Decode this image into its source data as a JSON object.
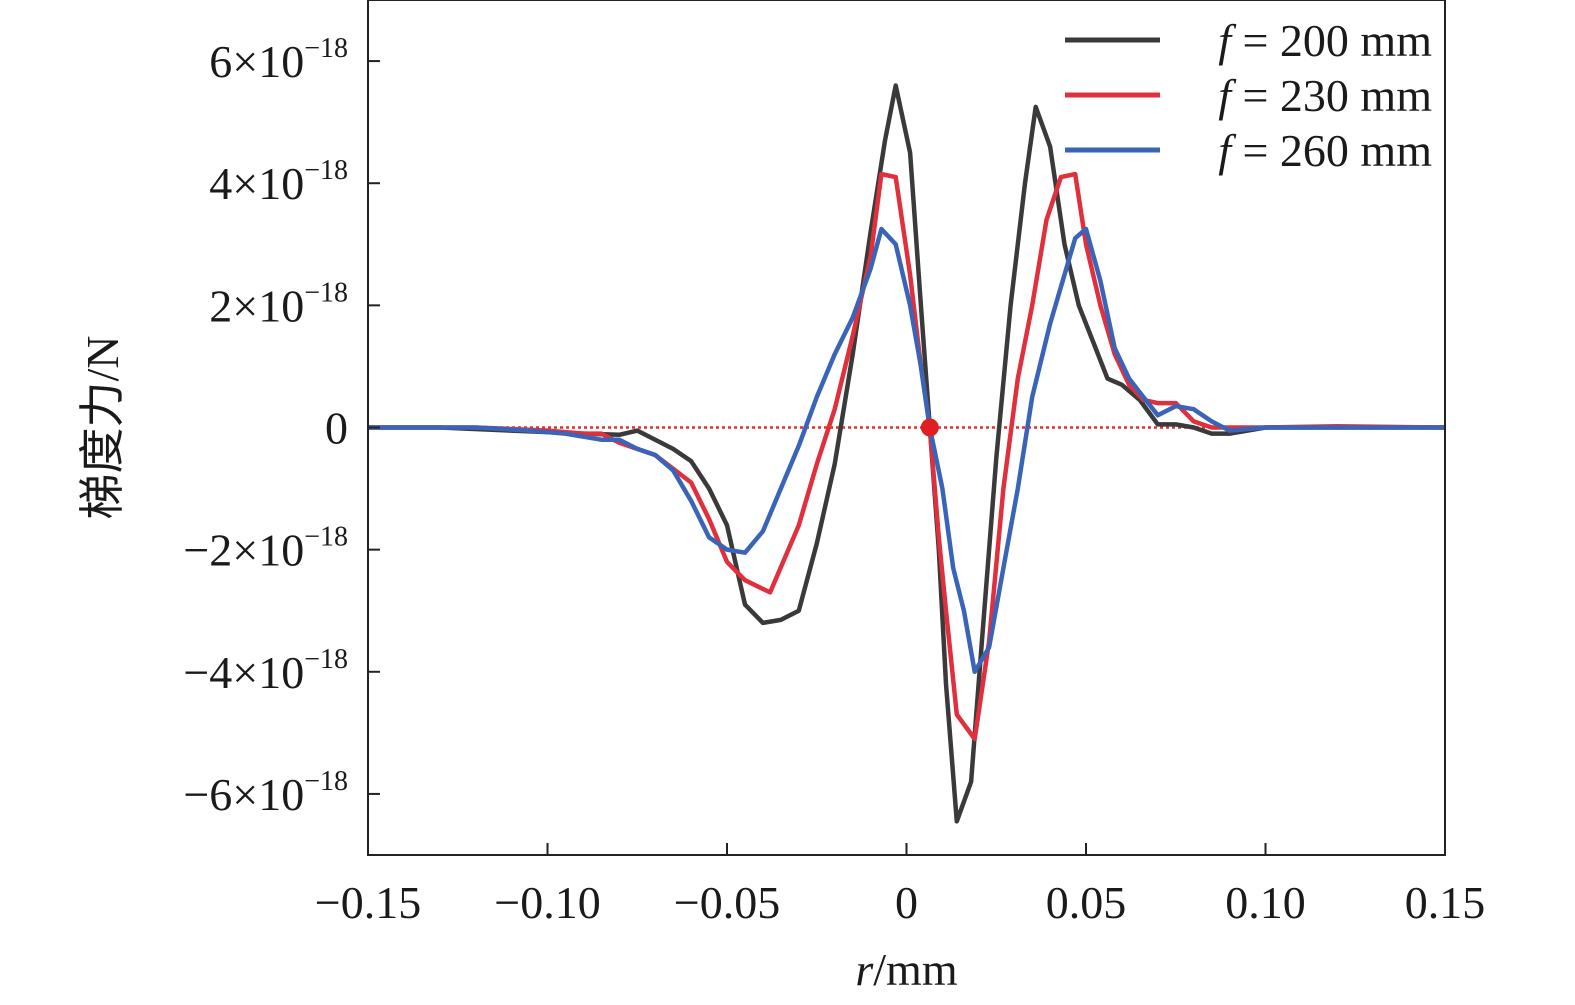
{
  "chart_data": {
    "type": "line",
    "xlabel": "r/mm",
    "xlabel_italic": "r",
    "xlabel_unit": "/mm",
    "ylabel": "梯度力/N",
    "xlim": [
      -0.15,
      0.15
    ],
    "ylim": [
      -7e-18,
      7e-18
    ],
    "x_ticks": [
      {
        "value": -0.15,
        "label": "−0.15"
      },
      {
        "value": -0.1,
        "label": "−0.10"
      },
      {
        "value": -0.05,
        "label": "−0.05"
      },
      {
        "value": 0,
        "label": "0"
      },
      {
        "value": 0.05,
        "label": "0.05"
      },
      {
        "value": 0.1,
        "label": "0.10"
      },
      {
        "value": 0.15,
        "label": "0.15"
      }
    ],
    "y_ticks": [
      {
        "value": 6e-18,
        "mant": "6×10",
        "exp": "−18"
      },
      {
        "value": 4e-18,
        "mant": "4×10",
        "exp": "−18"
      },
      {
        "value": 2e-18,
        "mant": "2×10",
        "exp": "−18"
      },
      {
        "value": 0,
        "mant": "0",
        "exp": ""
      },
      {
        "value": -2e-18,
        "mant": "−2×10",
        "exp": "−18"
      },
      {
        "value": -4e-18,
        "mant": "−4×10",
        "exp": "−18"
      },
      {
        "value": -6e-18,
        "mant": "−6×10",
        "exp": "−18"
      }
    ],
    "legend_position": "top-right",
    "zero_line": {
      "style": "dotted",
      "color": "#e03030"
    },
    "marker": {
      "x": 0.0065,
      "y": 0,
      "color": "#e02020"
    },
    "series": [
      {
        "name": "f = 200 mm",
        "name_italic": "f",
        "name_rest": " = 200 mm",
        "color": "#3a3a3a",
        "points": [
          [
            -0.15,
            0
          ],
          [
            -0.13,
            0
          ],
          [
            -0.11,
            -5e-20
          ],
          [
            -0.09,
            -1e-19
          ],
          [
            -0.08,
            -1.2e-19
          ],
          [
            -0.075,
            -5e-20
          ],
          [
            -0.07,
            -2e-19
          ],
          [
            -0.065,
            -3.5e-19
          ],
          [
            -0.06,
            -5.5e-19
          ],
          [
            -0.055,
            -1e-18
          ],
          [
            -0.05,
            -1.6e-18
          ],
          [
            -0.045,
            -2.9e-18
          ],
          [
            -0.04,
            -3.2e-18
          ],
          [
            -0.035,
            -3.15e-18
          ],
          [
            -0.03,
            -3e-18
          ],
          [
            -0.025,
            -1.9e-18
          ],
          [
            -0.02,
            -6e-19
          ],
          [
            -0.015,
            1.2e-18
          ],
          [
            -0.01,
            3.2e-18
          ],
          [
            -0.006,
            4.7e-18
          ],
          [
            -0.003,
            5.6e-18
          ],
          [
            0.001,
            4.5e-18
          ],
          [
            0.004,
            2e-18
          ],
          [
            0.0065,
            0
          ],
          [
            0.009,
            -2e-18
          ],
          [
            0.011,
            -4.2e-18
          ],
          [
            0.014,
            -6.45e-18
          ],
          [
            0.018,
            -5.8e-18
          ],
          [
            0.021,
            -3.5e-18
          ],
          [
            0.025,
            -5e-19
          ],
          [
            0.029,
            2e-18
          ],
          [
            0.033,
            4e-18
          ],
          [
            0.036,
            5.25e-18
          ],
          [
            0.04,
            4.6e-18
          ],
          [
            0.044,
            3e-18
          ],
          [
            0.048,
            2e-18
          ],
          [
            0.052,
            1.4e-18
          ],
          [
            0.056,
            8e-19
          ],
          [
            0.06,
            7e-19
          ],
          [
            0.065,
            4.5e-19
          ],
          [
            0.07,
            5e-20
          ],
          [
            0.075,
            5e-20
          ],
          [
            0.08,
            0
          ],
          [
            0.085,
            -1e-19
          ],
          [
            0.09,
            -1e-19
          ],
          [
            0.1,
            0
          ],
          [
            0.12,
            0
          ],
          [
            0.15,
            0
          ]
        ]
      },
      {
        "name": "f = 230 mm",
        "name_italic": "f",
        "name_rest": " = 230 mm",
        "color": "#e0303e",
        "points": [
          [
            -0.15,
            0
          ],
          [
            -0.12,
            0
          ],
          [
            -0.1,
            -5e-20
          ],
          [
            -0.09,
            -1e-19
          ],
          [
            -0.085,
            -1e-19
          ],
          [
            -0.08,
            -2.5e-19
          ],
          [
            -0.07,
            -4.5e-19
          ],
          [
            -0.06,
            -9e-19
          ],
          [
            -0.055,
            -1.5e-18
          ],
          [
            -0.05,
            -2.2e-18
          ],
          [
            -0.045,
            -2.5e-18
          ],
          [
            -0.038,
            -2.7e-18
          ],
          [
            -0.03,
            -1.6e-18
          ],
          [
            -0.025,
            -6e-19
          ],
          [
            -0.02,
            3e-19
          ],
          [
            -0.015,
            1.5e-18
          ],
          [
            -0.01,
            2.8e-18
          ],
          [
            -0.007,
            4.15e-18
          ],
          [
            -0.003,
            4.1e-18
          ],
          [
            0.001,
            2.5e-18
          ],
          [
            0.004,
            1e-18
          ],
          [
            0.0065,
            0
          ],
          [
            0.009,
            -1.8e-18
          ],
          [
            0.011,
            -3e-18
          ],
          [
            0.014,
            -4.7e-18
          ],
          [
            0.019,
            -5.1e-18
          ],
          [
            0.023,
            -3.5e-18
          ],
          [
            0.027,
            -1e-18
          ],
          [
            0.031,
            8e-19
          ],
          [
            0.035,
            2e-18
          ],
          [
            0.039,
            3.4e-18
          ],
          [
            0.043,
            4.1e-18
          ],
          [
            0.047,
            4.15e-18
          ],
          [
            0.05,
            3e-18
          ],
          [
            0.054,
            2e-18
          ],
          [
            0.058,
            1.2e-18
          ],
          [
            0.062,
            7e-19
          ],
          [
            0.066,
            4.5e-19
          ],
          [
            0.07,
            4e-19
          ],
          [
            0.075,
            4e-19
          ],
          [
            0.08,
            1e-19
          ],
          [
            0.085,
            0
          ],
          [
            0.1,
            0
          ],
          [
            0.12,
            2e-20
          ],
          [
            0.15,
            0
          ]
        ]
      },
      {
        "name": "f = 260 mm",
        "name_italic": "f",
        "name_rest": " = 260 mm",
        "color": "#3a64b8",
        "points": [
          [
            -0.15,
            0
          ],
          [
            -0.12,
            0
          ],
          [
            -0.105,
            -5e-20
          ],
          [
            -0.095,
            -1e-19
          ],
          [
            -0.09,
            -1.5e-19
          ],
          [
            -0.085,
            -2e-19
          ],
          [
            -0.08,
            -2e-19
          ],
          [
            -0.075,
            -3.5e-19
          ],
          [
            -0.07,
            -4.5e-19
          ],
          [
            -0.065,
            -7e-19
          ],
          [
            -0.06,
            -1.2e-18
          ],
          [
            -0.055,
            -1.8e-18
          ],
          [
            -0.05,
            -2e-18
          ],
          [
            -0.045,
            -2.05e-18
          ],
          [
            -0.04,
            -1.7e-18
          ],
          [
            -0.035,
            -1e-18
          ],
          [
            -0.03,
            -3e-19
          ],
          [
            -0.025,
            5e-19
          ],
          [
            -0.02,
            1.2e-18
          ],
          [
            -0.015,
            1.8e-18
          ],
          [
            -0.01,
            2.6e-18
          ],
          [
            -0.007,
            3.25e-18
          ],
          [
            -0.003,
            3e-18
          ],
          [
            0.001,
            2e-18
          ],
          [
            0.004,
            1e-18
          ],
          [
            0.0065,
            0
          ],
          [
            0.01,
            -1e-18
          ],
          [
            0.013,
            -2.3e-18
          ],
          [
            0.016,
            -3e-18
          ],
          [
            0.019,
            -4e-18
          ],
          [
            0.023,
            -3.6e-18
          ],
          [
            0.027,
            -2.3e-18
          ],
          [
            0.031,
            -1e-18
          ],
          [
            0.035,
            5e-19
          ],
          [
            0.04,
            1.7e-18
          ],
          [
            0.044,
            2.5e-18
          ],
          [
            0.047,
            3.1e-18
          ],
          [
            0.05,
            3.25e-18
          ],
          [
            0.054,
            2.4e-18
          ],
          [
            0.058,
            1.3e-18
          ],
          [
            0.062,
            8e-19
          ],
          [
            0.066,
            5e-19
          ],
          [
            0.07,
            2e-19
          ],
          [
            0.075,
            3.5e-19
          ],
          [
            0.08,
            3e-19
          ],
          [
            0.085,
            1e-19
          ],
          [
            0.09,
            -5e-20
          ],
          [
            0.1,
            0
          ],
          [
            0.12,
            0
          ],
          [
            0.15,
            0
          ]
        ]
      }
    ]
  }
}
